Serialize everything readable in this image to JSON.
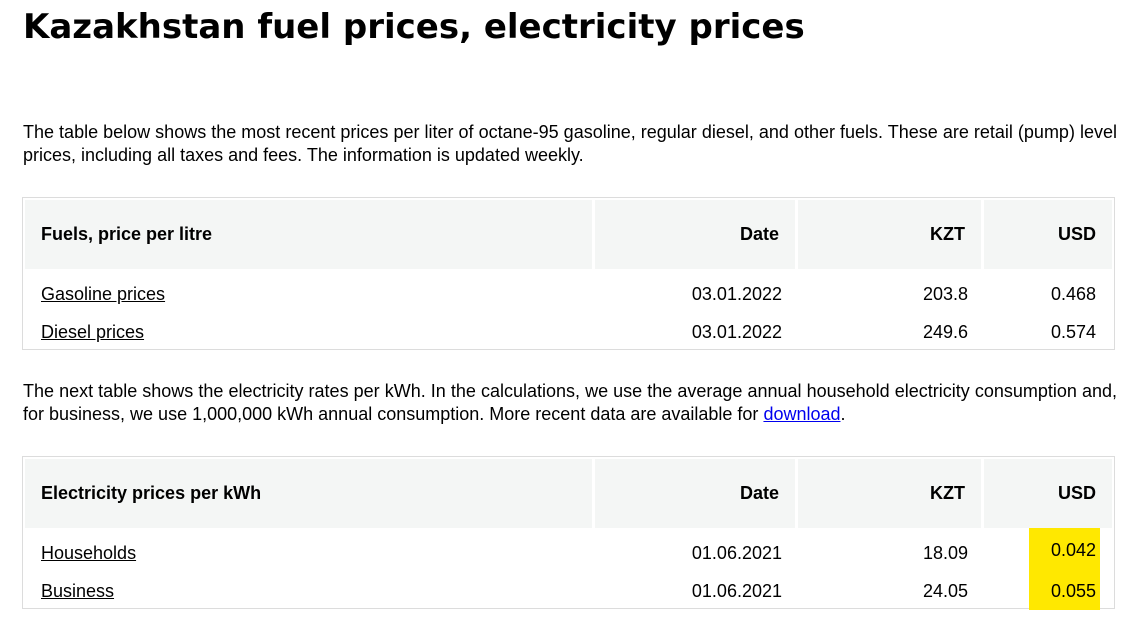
{
  "title": "Kazakhstan fuel prices, electricity prices",
  "intro_text": "The table below shows the most recent prices per liter of octane-95 gasoline, regular diesel, and other fuels. These are retail (pump) level prices, including all taxes and fees. The information is updated weekly.",
  "fuel_table": {
    "headers": [
      "Fuels, price per litre",
      "Date",
      "KZT",
      "USD"
    ],
    "rows": [
      {
        "name": "Gasoline prices",
        "date": "03.01.2022",
        "kzt": "203.8",
        "usd": "0.468"
      },
      {
        "name": "Diesel prices",
        "date": "03.01.2022",
        "kzt": "249.6",
        "usd": "0.574"
      }
    ]
  },
  "electricity_intro": {
    "text": "The next table shows the electricity rates per kWh. In the calculations, we use the average annual household electricity consumption and, for business, we use 1,000,000 kWh annual consumption. More recent data are available for ",
    "link_text": "download",
    "trailing": "."
  },
  "electricity_table": {
    "headers": [
      "Electricity prices per kWh",
      "Date",
      "KZT",
      "USD"
    ],
    "rows": [
      {
        "name": "Households",
        "date": "01.06.2021",
        "kzt": "18.09",
        "usd": "0.042"
      },
      {
        "name": "Business",
        "date": "01.06.2021",
        "kzt": "24.05",
        "usd": "0.055"
      }
    ],
    "highlight_color": "#ffe800"
  },
  "colors": {
    "header_bg": "#f4f6f5",
    "link": "#0000ee",
    "border": "#dcdcdc"
  }
}
